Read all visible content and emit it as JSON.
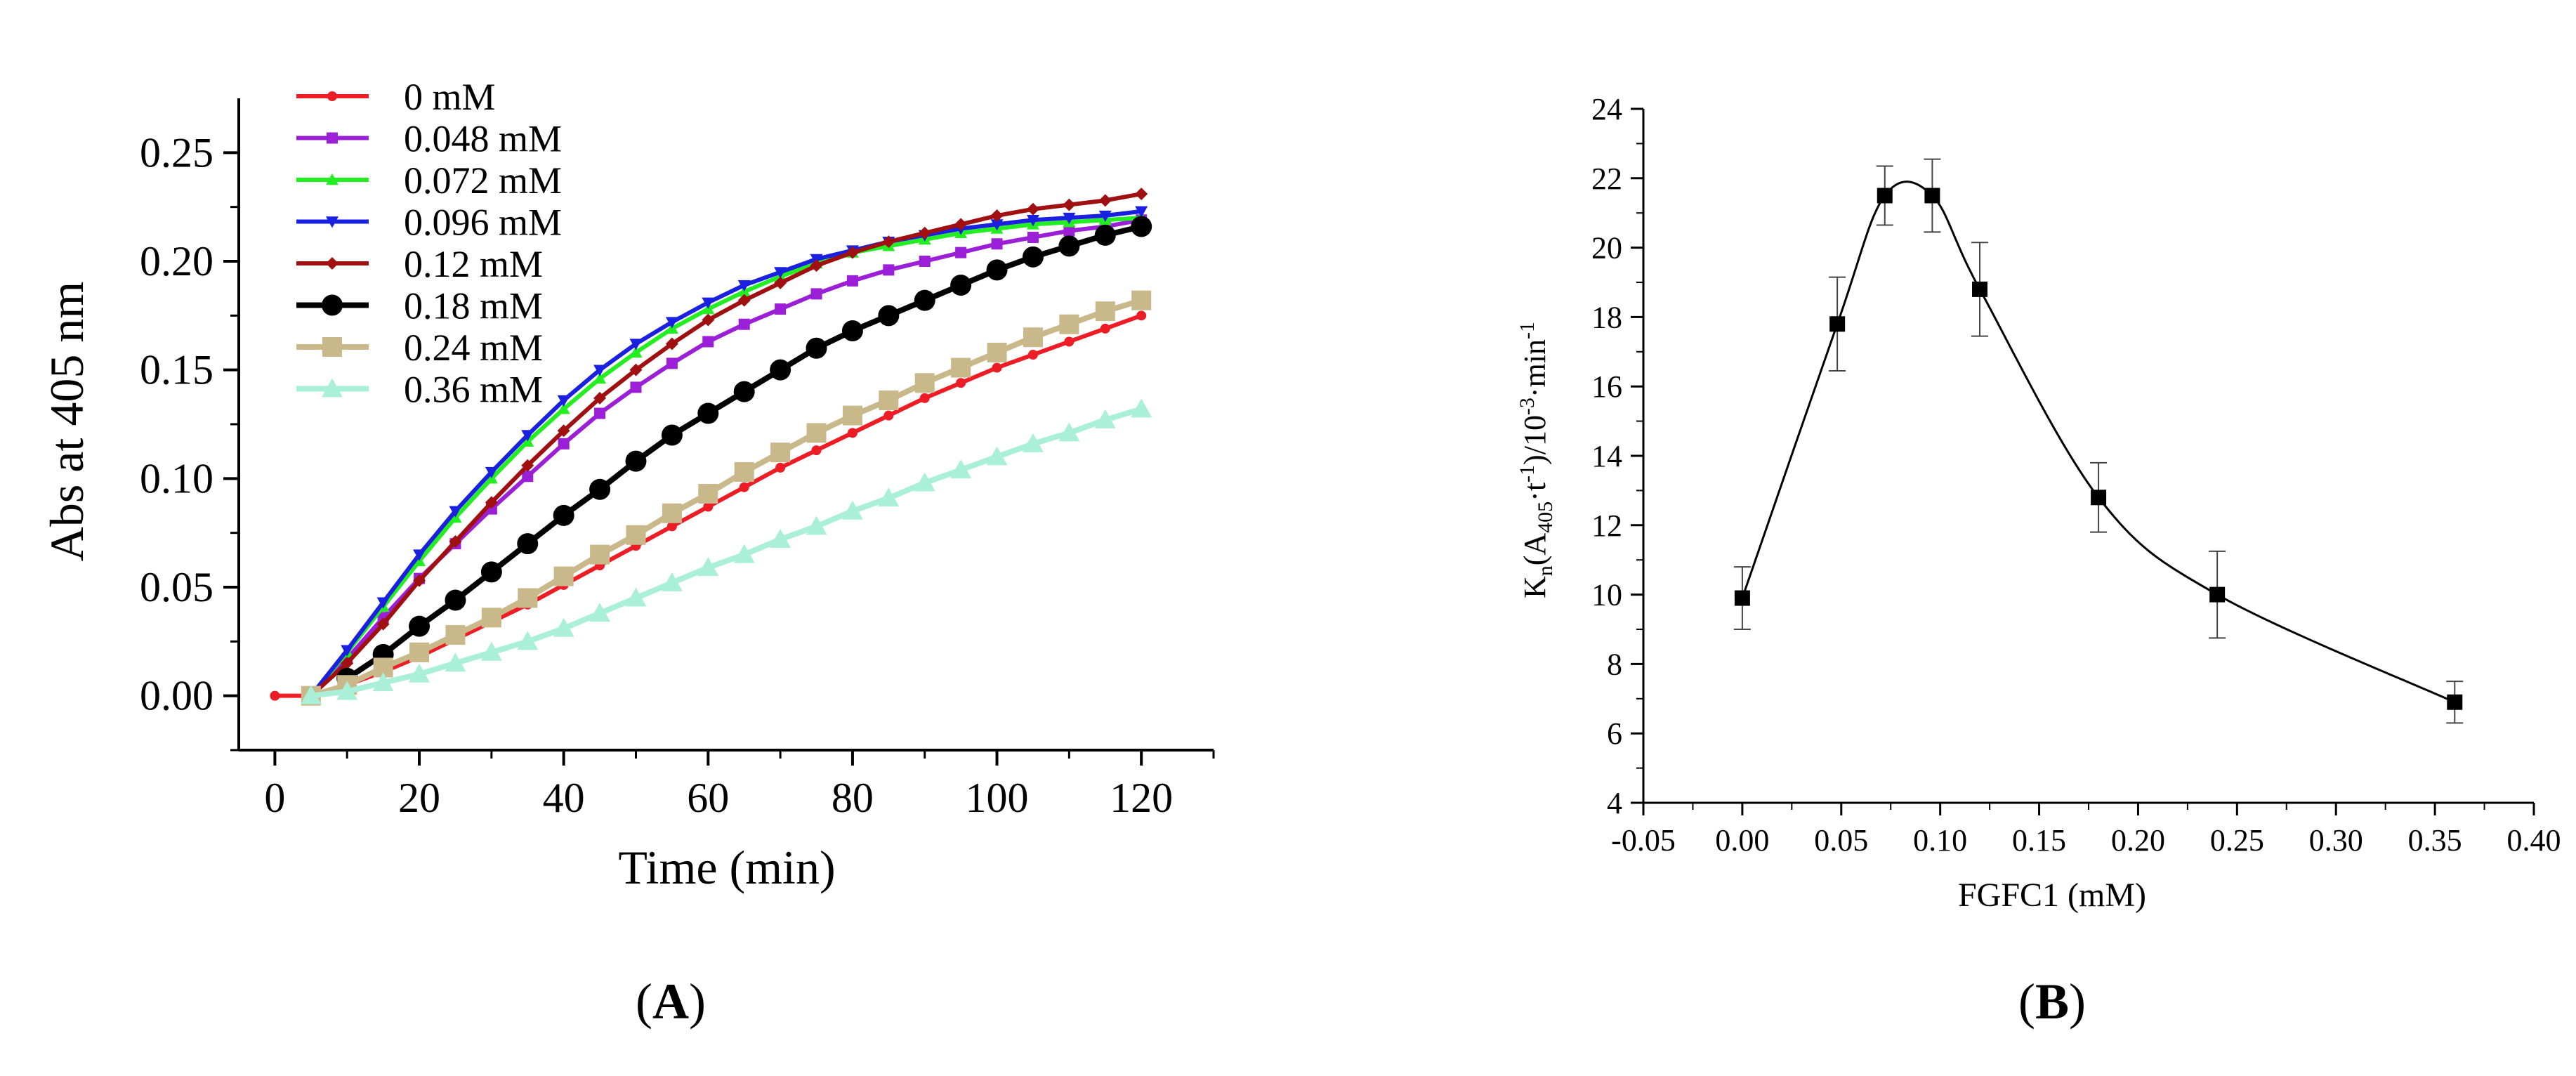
{
  "chart_data": [
    {
      "type": "line",
      "panel_label": "A",
      "title": "",
      "xlabel": "Time (min)",
      "ylabel": "Abs at 405 nm",
      "xlim": [
        -5,
        130
      ],
      "ylim": [
        -0.025,
        0.275
      ],
      "xticks": [
        "0",
        "20",
        "40",
        "60",
        "80",
        "100",
        "120"
      ],
      "yticks": [
        "0.00",
        "0.05",
        "0.10",
        "0.15",
        "0.20",
        "0.25"
      ],
      "legend_position": "top-left",
      "series": [
        {
          "name": "0 mM",
          "color": "#ee1c25",
          "marker": "circle-small",
          "x": [
            0,
            5,
            10,
            15,
            20,
            25,
            30,
            35,
            40,
            45,
            50,
            55,
            60,
            65,
            70,
            75,
            80,
            85,
            90,
            95,
            100,
            105,
            110,
            115,
            120
          ],
          "y": [
            0,
            0,
            0.005,
            0.011,
            0.018,
            0.026,
            0.034,
            0.042,
            0.051,
            0.06,
            0.069,
            0.078,
            0.087,
            0.096,
            0.105,
            0.113,
            0.121,
            0.129,
            0.137,
            0.144,
            0.151,
            0.157,
            0.163,
            0.169,
            0.175
          ]
        },
        {
          "name": "0.048 mM",
          "color": "#9b1fd6",
          "marker": "square",
          "x": [
            5,
            10,
            15,
            20,
            25,
            30,
            35,
            40,
            45,
            50,
            55,
            60,
            65,
            70,
            75,
            80,
            85,
            90,
            95,
            100,
            105,
            110,
            115,
            120
          ],
          "y": [
            0,
            0.017,
            0.036,
            0.054,
            0.07,
            0.086,
            0.101,
            0.116,
            0.13,
            0.142,
            0.153,
            0.163,
            0.171,
            0.178,
            0.185,
            0.191,
            0.196,
            0.2,
            0.204,
            0.208,
            0.211,
            0.214,
            0.216,
            0.219
          ]
        },
        {
          "name": "0.072 mM",
          "color": "#22ee22",
          "marker": "triangle-up",
          "x": [
            5,
            10,
            15,
            20,
            25,
            30,
            35,
            40,
            45,
            50,
            55,
            60,
            65,
            70,
            75,
            80,
            85,
            90,
            95,
            100,
            105,
            110,
            115,
            120
          ],
          "y": [
            0,
            0.02,
            0.041,
            0.062,
            0.082,
            0.1,
            0.117,
            0.132,
            0.146,
            0.158,
            0.169,
            0.178,
            0.186,
            0.193,
            0.199,
            0.204,
            0.207,
            0.21,
            0.213,
            0.215,
            0.217,
            0.218,
            0.219,
            0.22
          ]
        },
        {
          "name": "0.096 mM",
          "color": "#1a20e0",
          "marker": "triangle-down",
          "x": [
            5,
            10,
            15,
            20,
            25,
            30,
            35,
            40,
            45,
            50,
            55,
            60,
            65,
            70,
            75,
            80,
            85,
            90,
            95,
            100,
            105,
            110,
            115,
            120
          ],
          "y": [
            0,
            0.021,
            0.043,
            0.065,
            0.085,
            0.103,
            0.12,
            0.136,
            0.15,
            0.162,
            0.172,
            0.181,
            0.189,
            0.195,
            0.201,
            0.205,
            0.209,
            0.212,
            0.215,
            0.217,
            0.219,
            0.22,
            0.221,
            0.223
          ]
        },
        {
          "name": "0.12 mM",
          "color": "#a01010",
          "marker": "diamond",
          "x": [
            5,
            10,
            15,
            20,
            25,
            30,
            35,
            40,
            45,
            50,
            55,
            60,
            65,
            70,
            75,
            80,
            85,
            90,
            95,
            100,
            105,
            110,
            115,
            120
          ],
          "y": [
            0,
            0.015,
            0.033,
            0.053,
            0.071,
            0.089,
            0.106,
            0.122,
            0.137,
            0.15,
            0.162,
            0.173,
            0.182,
            0.19,
            0.198,
            0.204,
            0.209,
            0.213,
            0.217,
            0.221,
            0.224,
            0.226,
            0.228,
            0.231
          ]
        },
        {
          "name": "0.18 mM",
          "color": "#000000",
          "marker": "circle-large",
          "x": [
            10,
            15,
            20,
            25,
            30,
            35,
            40,
            45,
            50,
            55,
            60,
            65,
            70,
            75,
            80,
            85,
            90,
            95,
            100,
            105,
            110,
            115,
            120
          ],
          "y": [
            0.008,
            0.019,
            0.032,
            0.044,
            0.057,
            0.07,
            0.083,
            0.095,
            0.108,
            0.12,
            0.13,
            0.14,
            0.15,
            0.16,
            0.168,
            0.175,
            0.182,
            0.189,
            0.196,
            0.202,
            0.207,
            0.212,
            0.216
          ]
        },
        {
          "name": "0.24 mM",
          "color": "#c8b88a",
          "marker": "square-large",
          "x": [
            5,
            10,
            15,
            20,
            25,
            30,
            35,
            40,
            45,
            50,
            55,
            60,
            65,
            70,
            75,
            80,
            85,
            90,
            95,
            100,
            105,
            110,
            115,
            120
          ],
          "y": [
            0,
            0.005,
            0.013,
            0.02,
            0.028,
            0.036,
            0.045,
            0.055,
            0.065,
            0.074,
            0.084,
            0.093,
            0.103,
            0.112,
            0.121,
            0.129,
            0.136,
            0.144,
            0.151,
            0.158,
            0.165,
            0.171,
            0.177,
            0.182
          ]
        },
        {
          "name": "0.36 mM",
          "color": "#aaf0d8",
          "marker": "triangle-up-large",
          "x": [
            5,
            10,
            15,
            20,
            25,
            30,
            35,
            40,
            45,
            50,
            55,
            60,
            65,
            70,
            75,
            80,
            85,
            90,
            95,
            100,
            105,
            110,
            115,
            120
          ],
          "y": [
            0,
            0.002,
            0.006,
            0.01,
            0.015,
            0.02,
            0.025,
            0.031,
            0.038,
            0.045,
            0.052,
            0.059,
            0.065,
            0.072,
            0.078,
            0.085,
            0.091,
            0.098,
            0.104,
            0.11,
            0.116,
            0.121,
            0.127,
            0.132
          ]
        }
      ]
    },
    {
      "type": "scatter",
      "panel_label": "B",
      "title": "",
      "xlabel": "FGFC1 (mM)",
      "ylabel": "Kn(A405·t-1)/10-3·min-1",
      "ylabel_parts": {
        "k": "K",
        "sub_n": "n",
        "open": "(A",
        "sub_405": "405",
        "dot_t": "·t",
        "sup_m1": "-1",
        "close_div": ")/10",
        "sup_m3": "-3",
        "dot_min": "·min",
        "sup_m1b": "-1"
      },
      "xlim": [
        -0.05,
        0.4
      ],
      "ylim": [
        4,
        24
      ],
      "xticks": [
        "-0.05",
        "0.00",
        "0.05",
        "0.10",
        "0.15",
        "0.20",
        "0.25",
        "0.30",
        "0.35",
        "0.40"
      ],
      "yticks": [
        "4",
        "6",
        "8",
        "10",
        "12",
        "14",
        "16",
        "18",
        "20",
        "22",
        "24"
      ],
      "grid": false,
      "fit_curve": "smooth spline through points",
      "series": [
        {
          "name": "FGFC1",
          "color": "#000000",
          "marker": "square",
          "x": [
            0,
            0.048,
            0.072,
            0.096,
            0.12,
            0.18,
            0.24,
            0.36
          ],
          "y": [
            9.9,
            17.8,
            21.5,
            21.5,
            18.8,
            12.8,
            10.0,
            6.9
          ],
          "error": [
            0.9,
            1.35,
            0.85,
            1.05,
            1.35,
            1.0,
            1.25,
            0.6
          ]
        }
      ]
    }
  ]
}
